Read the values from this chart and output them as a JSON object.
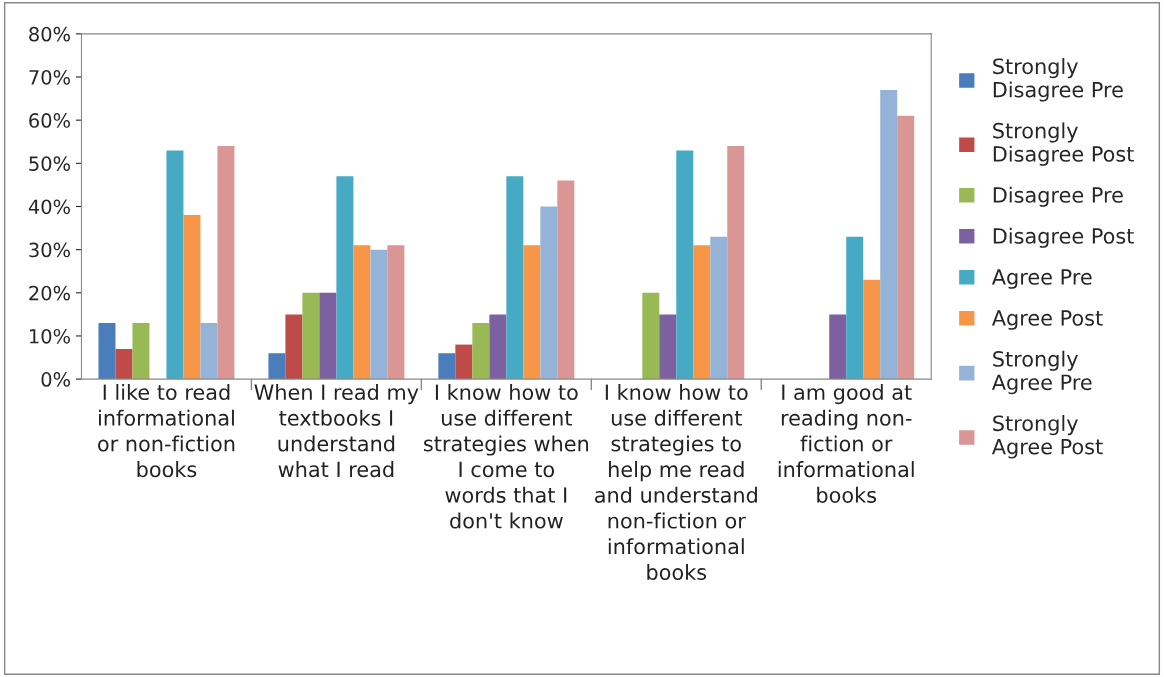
{
  "chart_data": {
    "type": "bar",
    "categories": [
      "I like to read\ninformational\nor non-fiction\nbooks",
      "When I read my\ntextbooks I\nunderstand\nwhat I read",
      "I know how to\nuse different\nstrategies when\nI come to\nwords that I\ndon't know",
      "I know how to\nuse different\nstrategies to\nhelp me read\nand understand\nnon-fiction or\ninformational\nbooks",
      "I am good at\nreading non-\nfiction or\ninformational\nbooks"
    ],
    "series": [
      {
        "name": "Strongly\nDisagree Pre",
        "color": "#4a7ebb",
        "values": [
          13,
          6,
          6,
          null,
          null
        ]
      },
      {
        "name": "Strongly\nDisagree Post",
        "color": "#be4b48",
        "values": [
          7,
          15,
          8,
          null,
          null
        ]
      },
      {
        "name": "Disagree Pre",
        "color": "#98b954",
        "values": [
          13,
          20,
          13,
          20,
          null
        ]
      },
      {
        "name": "Disagree Post",
        "color": "#7d60a0",
        "values": [
          null,
          20,
          15,
          15,
          15
        ]
      },
      {
        "name": "Agree Pre",
        "color": "#46aac5",
        "values": [
          53,
          47,
          47,
          53,
          33
        ]
      },
      {
        "name": "Agree Post",
        "color": "#f79646",
        "values": [
          38,
          31,
          31,
          31,
          23
        ]
      },
      {
        "name": "Strongly\nAgree Pre",
        "color": "#95b3d7",
        "values": [
          13,
          30,
          40,
          33,
          67
        ]
      },
      {
        "name": "Strongly\nAgree Post",
        "color": "#d99694",
        "values": [
          54,
          31,
          46,
          54,
          61
        ]
      }
    ],
    "ylim": [
      0,
      80
    ],
    "yticks": [
      {
        "value": 0,
        "label": "0%"
      },
      {
        "value": 10,
        "label": "10%"
      },
      {
        "value": 20,
        "label": "20%"
      },
      {
        "value": 30,
        "label": "30%"
      },
      {
        "value": 40,
        "label": "40%"
      },
      {
        "value": 50,
        "label": "50%"
      },
      {
        "value": 60,
        "label": "60%"
      },
      {
        "value": 70,
        "label": "70%"
      },
      {
        "value": 80,
        "label": "80%"
      }
    ],
    "grid": false,
    "legend": "right"
  }
}
